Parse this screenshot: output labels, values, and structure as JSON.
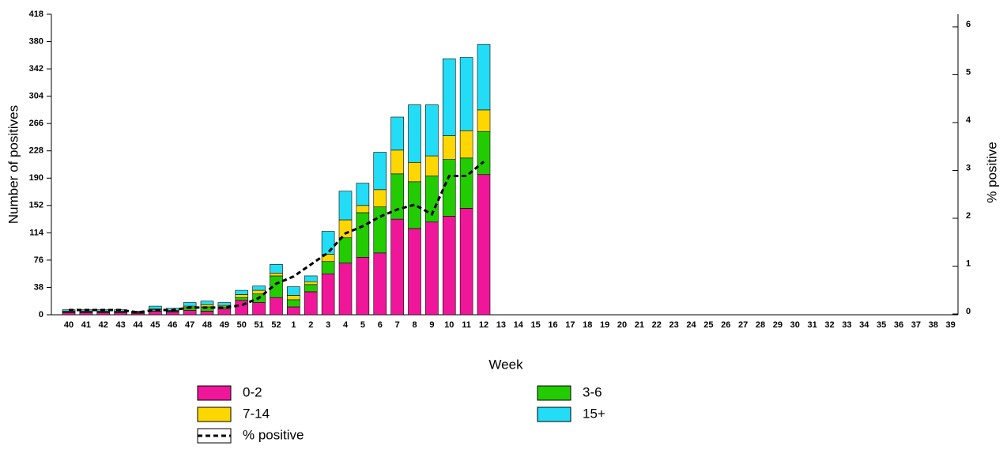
{
  "chart_data": {
    "type": "bar",
    "stacked": true,
    "x_label": "Week",
    "y_label": "Number of positives",
    "y2_label": "% positive",
    "categories": [
      "40",
      "41",
      "42",
      "43",
      "44",
      "45",
      "46",
      "47",
      "48",
      "49",
      "50",
      "51",
      "52",
      "1",
      "2",
      "3",
      "4",
      "5",
      "6",
      "7",
      "8",
      "9",
      "10",
      "11",
      "12",
      "13",
      "14",
      "15",
      "16",
      "17",
      "18",
      "19",
      "20",
      "21",
      "22",
      "23",
      "24",
      "25",
      "26",
      "27",
      "28",
      "29",
      "30",
      "31",
      "32",
      "33",
      "34",
      "35",
      "36",
      "37",
      "38",
      "39"
    ],
    "series": [
      {
        "name": "0-2",
        "color": "#f0169a",
        "values": [
          3,
          3,
          3,
          3,
          2,
          5,
          4,
          6,
          5,
          8,
          20,
          17,
          24,
          11,
          32,
          57,
          72,
          80,
          86,
          133,
          120,
          129,
          137,
          148,
          195,
          null,
          null,
          null,
          null,
          null,
          null,
          null,
          null,
          null,
          null,
          null,
          null,
          null,
          null,
          null,
          null,
          null,
          null,
          null,
          null,
          null,
          null,
          null,
          null,
          null,
          null,
          null
        ]
      },
      {
        "name": "3-6",
        "color": "#22cc00",
        "values": [
          1,
          1,
          1,
          1,
          1,
          2,
          1,
          4,
          6,
          3,
          4,
          12,
          30,
          10,
          10,
          17,
          35,
          62,
          64,
          63,
          65,
          64,
          79,
          70,
          60,
          null,
          null,
          null,
          null,
          null,
          null,
          null,
          null,
          null,
          null,
          null,
          null,
          null,
          null,
          null,
          null,
          null,
          null,
          null,
          null,
          null,
          null,
          null,
          null,
          null,
          null,
          null
        ]
      },
      {
        "name": "7-14",
        "color": "#ffd700",
        "values": [
          1,
          1,
          1,
          1,
          1,
          1,
          1,
          2,
          3,
          2,
          4,
          5,
          4,
          6,
          4,
          10,
          25,
          10,
          24,
          33,
          27,
          28,
          33,
          38,
          30,
          null,
          null,
          null,
          null,
          null,
          null,
          null,
          null,
          null,
          null,
          null,
          null,
          null,
          null,
          null,
          null,
          null,
          null,
          null,
          null,
          null,
          null,
          null,
          null,
          null,
          null,
          null
        ]
      },
      {
        "name": "15+",
        "color": "#22ddf5",
        "values": [
          2,
          2,
          2,
          2,
          1,
          4,
          3,
          5,
          5,
          4,
          6,
          6,
          12,
          12,
          8,
          32,
          40,
          31,
          52,
          46,
          80,
          71,
          107,
          102,
          91,
          null,
          null,
          null,
          null,
          null,
          null,
          null,
          null,
          null,
          null,
          null,
          null,
          null,
          null,
          null,
          null,
          null,
          null,
          null,
          null,
          null,
          null,
          null,
          null,
          null,
          null,
          null
        ]
      },
      {
        "name": "% positive",
        "type": "line",
        "axis": "y2",
        "color": "#000000",
        "dashed": true,
        "values": [
          0.1,
          0.1,
          0.1,
          0.1,
          0.05,
          0.1,
          0.1,
          0.15,
          0.15,
          0.15,
          0.2,
          0.35,
          0.65,
          0.8,
          1.05,
          1.3,
          1.7,
          1.85,
          2.05,
          2.2,
          2.3,
          2.1,
          2.9,
          2.9,
          3.2,
          null,
          null,
          null,
          null,
          null,
          null,
          null,
          null,
          null,
          null,
          null,
          null,
          null,
          null,
          null,
          null,
          null,
          null,
          null,
          null,
          null,
          null,
          null,
          null,
          null,
          null,
          null
        ]
      }
    ],
    "ylim": [
      0,
      418
    ],
    "yticks": [
      0,
      38,
      76,
      114,
      152,
      190,
      228,
      266,
      304,
      342,
      380,
      418
    ],
    "y2lim": [
      0,
      6.28
    ],
    "y2ticks": [
      0,
      1,
      2,
      3,
      4,
      5,
      6
    ]
  }
}
